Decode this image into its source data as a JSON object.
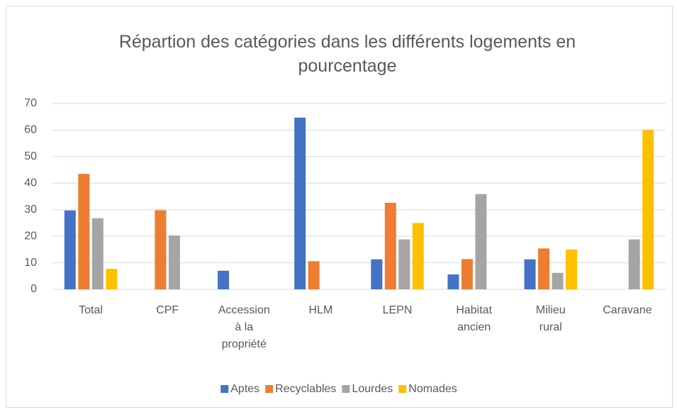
{
  "chart_data": {
    "type": "bar",
    "title": "Répartion des catégories dans les différents logements en pourcentage",
    "categories": [
      "Total",
      "CPF",
      "Accession à la propriété",
      "HLM",
      "LEPN",
      "Habitat ancien",
      "Milieu rural",
      "Caravane"
    ],
    "series": [
      {
        "name": "Aptes",
        "color": "#4472c4",
        "values": [
          29.7,
          0,
          7,
          64.7,
          11.3,
          5.6,
          11.3,
          0
        ]
      },
      {
        "name": "Recyclables",
        "color": "#ed7d31",
        "values": [
          43.5,
          29.8,
          0,
          10.6,
          32.6,
          11.4,
          15.4,
          0
        ]
      },
      {
        "name": "Lourdes",
        "color": "#a5a5a5",
        "values": [
          26.8,
          20.3,
          0,
          0,
          18.8,
          35.9,
          6.2,
          18.8
        ]
      },
      {
        "name": "Nomades",
        "color": "#ffc000",
        "values": [
          7.7,
          0,
          0,
          0,
          25,
          0,
          15,
          60
        ]
      }
    ],
    "ylim": [
      0,
      70
    ],
    "yticks": [
      0,
      10,
      20,
      30,
      40,
      50,
      60,
      70
    ],
    "grid": true,
    "legend": "bottom"
  }
}
